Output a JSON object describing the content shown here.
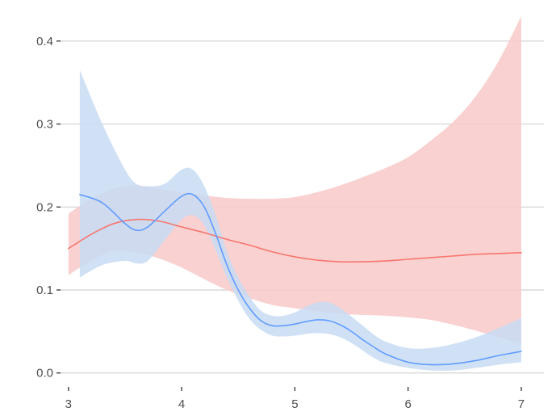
{
  "chart_data": {
    "type": "area",
    "title": "",
    "xlabel": "",
    "ylabel": "",
    "xlim": [
      2.93,
      7.2
    ],
    "ylim": [
      -0.01,
      0.43
    ],
    "x_ticks": [
      3,
      4,
      5,
      6,
      7
    ],
    "x_tick_labels": [
      "3",
      "4",
      "5",
      "6",
      "7"
    ],
    "y_ticks": [
      0.0,
      0.1,
      0.2,
      0.3,
      0.4
    ],
    "y_tick_labels": [
      "0.0",
      "0.1",
      "0.2",
      "0.3",
      "0.4"
    ],
    "grid": "horizontal",
    "legend": "none",
    "series": [
      {
        "color": "#f8766d",
        "band_color": "#f8c9c9",
        "x": [
          3.0,
          3.2,
          3.4,
          3.6,
          3.8,
          4.0,
          4.2,
          4.4,
          4.6,
          4.8,
          5.0,
          5.2,
          5.4,
          5.6,
          5.8,
          6.0,
          6.2,
          6.4,
          6.6,
          6.8,
          7.0
        ],
        "y": [
          0.15,
          0.167,
          0.18,
          0.185,
          0.183,
          0.176,
          0.169,
          0.161,
          0.154,
          0.146,
          0.14,
          0.136,
          0.134,
          0.134,
          0.135,
          0.137,
          0.139,
          0.141,
          0.143,
          0.144,
          0.145
        ],
        "lower": [
          0.118,
          0.135,
          0.147,
          0.145,
          0.138,
          0.127,
          0.113,
          0.1,
          0.09,
          0.082,
          0.078,
          0.074,
          0.071,
          0.07,
          0.069,
          0.067,
          0.064,
          0.058,
          0.051,
          0.043,
          0.036
        ],
        "upper": [
          0.192,
          0.21,
          0.222,
          0.226,
          0.222,
          0.218,
          0.214,
          0.211,
          0.21,
          0.21,
          0.212,
          0.218,
          0.226,
          0.236,
          0.247,
          0.26,
          0.28,
          0.303,
          0.334,
          0.376,
          0.43
        ]
      },
      {
        "color": "#619cff",
        "band_color": "#c8dcf4",
        "x": [
          3.1,
          3.3,
          3.5,
          3.6,
          3.7,
          3.85,
          4.0,
          4.1,
          4.2,
          4.3,
          4.4,
          4.5,
          4.6,
          4.7,
          4.8,
          4.9,
          5.0,
          5.1,
          5.2,
          5.3,
          5.4,
          5.5,
          5.6,
          5.7,
          5.8,
          6.0,
          6.2,
          6.4,
          6.6,
          6.8,
          7.0
        ],
        "y": [
          0.215,
          0.205,
          0.18,
          0.172,
          0.176,
          0.195,
          0.213,
          0.215,
          0.2,
          0.168,
          0.13,
          0.1,
          0.078,
          0.063,
          0.057,
          0.057,
          0.059,
          0.062,
          0.064,
          0.063,
          0.058,
          0.05,
          0.04,
          0.031,
          0.023,
          0.013,
          0.01,
          0.011,
          0.015,
          0.021,
          0.026
        ],
        "lower": [
          0.115,
          0.13,
          0.135,
          0.132,
          0.135,
          0.16,
          0.185,
          0.19,
          0.178,
          0.148,
          0.115,
          0.087,
          0.065,
          0.052,
          0.045,
          0.044,
          0.045,
          0.047,
          0.048,
          0.047,
          0.043,
          0.036,
          0.027,
          0.018,
          0.012,
          0.006,
          0.003,
          0.003,
          0.006,
          0.01,
          0.013
        ],
        "upper": [
          0.365,
          0.3,
          0.245,
          0.228,
          0.225,
          0.228,
          0.245,
          0.245,
          0.225,
          0.19,
          0.146,
          0.115,
          0.092,
          0.075,
          0.069,
          0.069,
          0.073,
          0.08,
          0.085,
          0.085,
          0.078,
          0.068,
          0.057,
          0.046,
          0.038,
          0.03,
          0.03,
          0.035,
          0.043,
          0.054,
          0.066
        ]
      }
    ]
  }
}
